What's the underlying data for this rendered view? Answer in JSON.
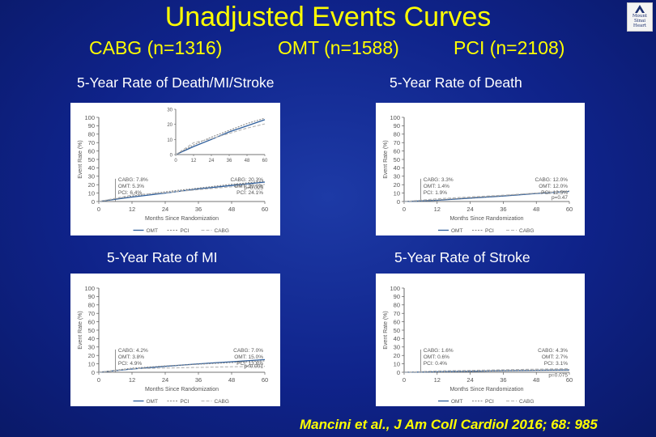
{
  "title": "Unadjusted Events Curves",
  "groups": {
    "cabg": "CABG (n=1316)",
    "omt": "OMT (n=1588)",
    "pci": "PCI (n=2108)"
  },
  "logo_text": [
    "Mount",
    "Sinai",
    "Heart"
  ],
  "citation": "Mancini et al., J Am Coll Cardiol 2016; 68: 985",
  "colors": {
    "OMT": "#2f5f9c",
    "PCI": "#8a8a8a",
    "CABG": "#b4b4b4"
  },
  "chart_data": [
    {
      "type": "line",
      "panel_title": "5-Year Rate of Death/MI/Stroke",
      "xlabel": "Months Since Randomization",
      "ylabel": "Event Rate (%)",
      "xlim": [
        0,
        60
      ],
      "ylim": [
        0,
        100
      ],
      "xticks": [
        0,
        12,
        24,
        36,
        48,
        60
      ],
      "yticks": [
        0,
        10,
        20,
        30,
        40,
        50,
        60,
        70,
        80,
        90,
        100
      ],
      "series": [
        {
          "name": "OMT",
          "x": [
            0,
            12,
            24,
            36,
            48,
            60
          ],
          "y": [
            0,
            5.3,
            10,
            15,
            19,
            23.1
          ]
        },
        {
          "name": "PCI",
          "x": [
            0,
            12,
            24,
            36,
            48,
            60
          ],
          "y": [
            0,
            6.4,
            11.5,
            16,
            20.5,
            24.1
          ]
        },
        {
          "name": "CABG",
          "x": [
            0,
            12,
            24,
            36,
            48,
            60
          ],
          "y": [
            0,
            7.8,
            10.5,
            14,
            17.5,
            20.3
          ]
        }
      ],
      "left_annotation": [
        "CABG: 7.8%",
        "OMT: 5.3%",
        "PCI: 6.4%"
      ],
      "right_annotation": [
        "CABG: 20.3%",
        "OMT: 23.1%",
        "PCI: 24.1%"
      ],
      "p_value": "p=0.025",
      "inset": {
        "xlim": [
          0,
          60
        ],
        "ylim": [
          0,
          30
        ],
        "xticks": [
          0,
          12,
          24,
          36,
          48,
          60
        ],
        "yticks": [
          0,
          10,
          20,
          30
        ]
      },
      "legend": [
        "OMT",
        "PCI",
        "CABG"
      ]
    },
    {
      "type": "line",
      "panel_title": "5-Year Rate of Death",
      "xlabel": "Months Since Randomization",
      "ylabel": "Event Rate (%)",
      "xlim": [
        0,
        60
      ],
      "ylim": [
        0,
        100
      ],
      "xticks": [
        0,
        12,
        24,
        36,
        48,
        60
      ],
      "yticks": [
        0,
        10,
        20,
        30,
        40,
        50,
        60,
        70,
        80,
        90,
        100
      ],
      "series": [
        {
          "name": "OMT",
          "x": [
            0,
            12,
            24,
            36,
            48,
            60
          ],
          "y": [
            0,
            1.4,
            4,
            6.5,
            9.5,
            12.0
          ]
        },
        {
          "name": "PCI",
          "x": [
            0,
            12,
            24,
            36,
            48,
            60
          ],
          "y": [
            0,
            1.9,
            4.5,
            7,
            10,
            12.5
          ]
        },
        {
          "name": "CABG",
          "x": [
            0,
            12,
            24,
            36,
            48,
            60
          ],
          "y": [
            0,
            3.3,
            5.5,
            7.5,
            10,
            12.0
          ]
        }
      ],
      "left_annotation": [
        "CABG: 3.3%",
        "OMT: 1.4%",
        "PCI: 1.9%"
      ],
      "right_annotation": [
        "CABG: 12.0%",
        "OMT: 12.0%",
        "PCI: 12.5%"
      ],
      "p_value": "p=0.47",
      "legend": [
        "OMT",
        "PCI",
        "CABG"
      ]
    },
    {
      "type": "line",
      "panel_title": "5-Year Rate of MI",
      "xlabel": "Months Since Randomization",
      "ylabel": "Event Rate (%)",
      "xlim": [
        0,
        60
      ],
      "ylim": [
        0,
        100
      ],
      "xticks": [
        0,
        12,
        24,
        36,
        48,
        60
      ],
      "yticks": [
        0,
        10,
        20,
        30,
        40,
        50,
        60,
        70,
        80,
        90,
        100
      ],
      "series": [
        {
          "name": "OMT",
          "x": [
            0,
            12,
            24,
            36,
            48,
            60
          ],
          "y": [
            0,
            3.8,
            7,
            10,
            12.5,
            15.0
          ]
        },
        {
          "name": "PCI",
          "x": [
            0,
            12,
            24,
            36,
            48,
            60
          ],
          "y": [
            0,
            4.9,
            7.5,
            9.5,
            11.5,
            13.6
          ]
        },
        {
          "name": "CABG",
          "x": [
            0,
            12,
            24,
            36,
            48,
            60
          ],
          "y": [
            0,
            4.2,
            5,
            5.8,
            6.5,
            7.0
          ]
        }
      ],
      "left_annotation": [
        "CABG: 4.2%",
        "OMT: 3.8%",
        "PCI: 4.9%"
      ],
      "right_annotation": [
        "CABG: 7.0%",
        "OMT: 15.0%",
        "PCI: 13.6%"
      ],
      "p_value": "p<0.001",
      "legend": [
        "OMT",
        "PCI",
        "CABG"
      ]
    },
    {
      "type": "line",
      "panel_title": "5-Year Rate of Stroke",
      "xlabel": "Months Since Randomization",
      "ylabel": "Event Rate (%)",
      "xlim": [
        0,
        60
      ],
      "ylim": [
        0,
        100
      ],
      "xticks": [
        0,
        12,
        24,
        36,
        48,
        60
      ],
      "yticks": [
        0,
        10,
        20,
        30,
        40,
        50,
        60,
        70,
        80,
        90,
        100
      ],
      "series": [
        {
          "name": "OMT",
          "x": [
            0,
            12,
            24,
            36,
            48,
            60
          ],
          "y": [
            0,
            0.6,
            1.2,
            1.8,
            2.3,
            2.7
          ]
        },
        {
          "name": "PCI",
          "x": [
            0,
            12,
            24,
            36,
            48,
            60
          ],
          "y": [
            0,
            0.4,
            1.1,
            1.8,
            2.5,
            3.1
          ]
        },
        {
          "name": "CABG",
          "x": [
            0,
            12,
            24,
            36,
            48,
            60
          ],
          "y": [
            0,
            1.6,
            2.3,
            3,
            3.7,
            4.3
          ]
        }
      ],
      "left_annotation": [
        "CABG: 1.6%",
        "OMT: 0.6%",
        "PCI: 0.4%"
      ],
      "right_annotation": [
        "CABG: 4.3%",
        "OMT: 2.7%",
        "PCI: 3.1%"
      ],
      "p_value": "p=0.075",
      "legend": [
        "OMT",
        "PCI",
        "CABG"
      ]
    }
  ]
}
